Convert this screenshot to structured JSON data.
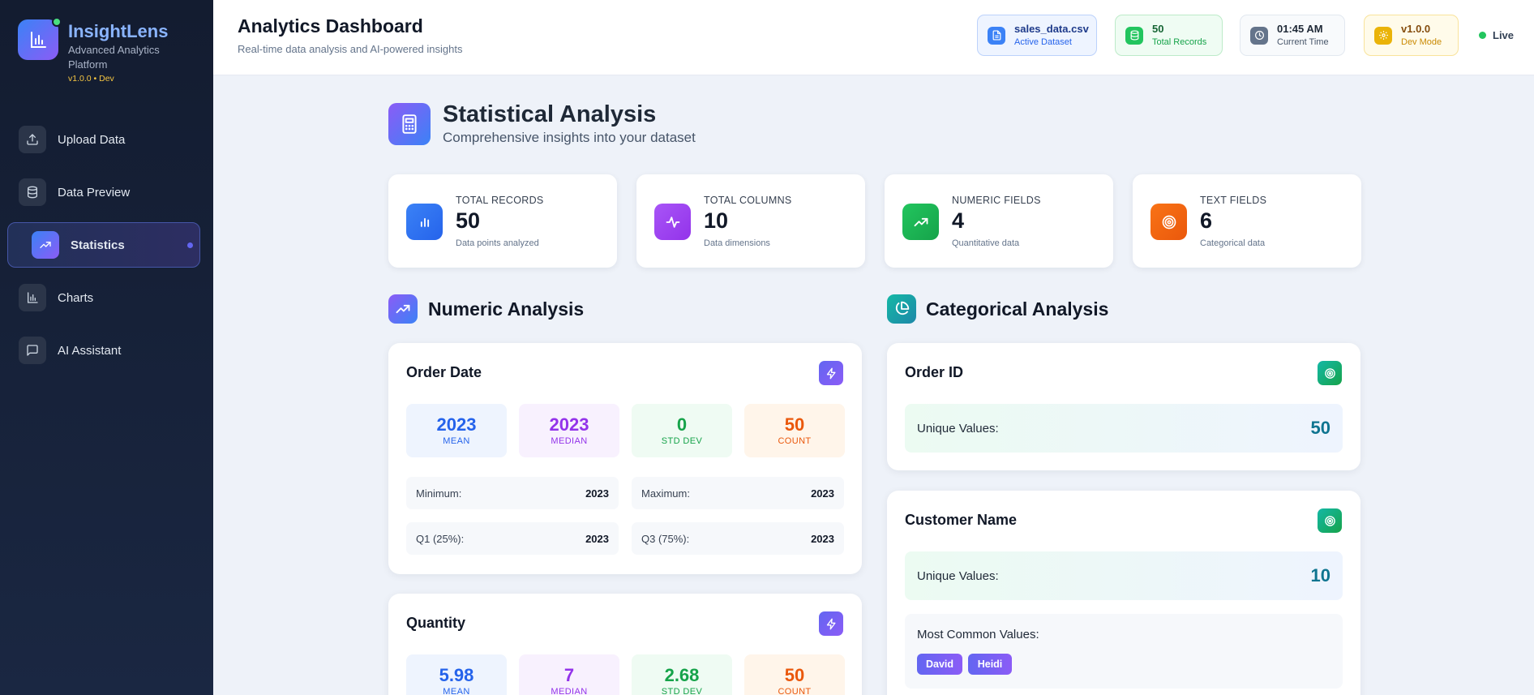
{
  "app": {
    "name": "InsightLens",
    "subtitle": "Advanced Analytics Platform",
    "version_tag": "v1.0.0 • Dev"
  },
  "sidebar": {
    "items": [
      {
        "label": "Upload Data",
        "icon": "upload-icon"
      },
      {
        "label": "Data Preview",
        "icon": "database-icon"
      },
      {
        "label": "Statistics",
        "icon": "trending-up-icon",
        "active": true
      },
      {
        "label": "Charts",
        "icon": "bar-chart-icon"
      },
      {
        "label": "AI Assistant",
        "icon": "message-icon"
      }
    ]
  },
  "header": {
    "title": "Analytics Dashboard",
    "subtitle": "Real-time data analysis and AI-powered insights",
    "dataset": {
      "value": "sales_data.csv",
      "label": "Active Dataset"
    },
    "records": {
      "value": "50",
      "label": "Total Records"
    },
    "time": {
      "value": "01:45 AM",
      "label": "Current Time"
    },
    "mode": {
      "value": "v1.0.0",
      "label": "Dev Mode"
    },
    "live": "Live"
  },
  "main": {
    "title": "Statistical Analysis",
    "subtitle": "Comprehensive insights into your dataset",
    "stats": [
      {
        "label": "TOTAL RECORDS",
        "value": "50",
        "desc": "Data points analyzed",
        "color": "#3b82f6"
      },
      {
        "label": "TOTAL COLUMNS",
        "value": "10",
        "desc": "Data dimensions",
        "color": "#a855f7"
      },
      {
        "label": "NUMERIC FIELDS",
        "value": "4",
        "desc": "Quantitative data",
        "color": "#22c55e"
      },
      {
        "label": "TEXT FIELDS",
        "value": "6",
        "desc": "Categorical data",
        "color": "#f97316"
      }
    ],
    "numeric_title": "Numeric Analysis",
    "categorical_title": "Categorical Analysis",
    "numeric_cards": [
      {
        "name": "Order Date",
        "mean": "2023",
        "median": "2023",
        "std": "0",
        "count": "50",
        "min_label": "Minimum:",
        "min": "2023",
        "max_label": "Maximum:",
        "max": "2023",
        "q1_label": "Q1 (25%):",
        "q1": "2023",
        "q3_label": "Q3 (75%):",
        "q3": "2023"
      },
      {
        "name": "Quantity",
        "mean": "5.98",
        "median": "7",
        "std": "2.68",
        "count": "50"
      }
    ],
    "metric_labels": {
      "mean": "MEAN",
      "median": "MEDIAN",
      "std": "STD DEV",
      "count": "COUNT"
    },
    "categorical_cards": [
      {
        "name": "Order ID",
        "unique_label": "Unique Values:",
        "unique": "50"
      },
      {
        "name": "Customer Name",
        "unique_label": "Unique Values:",
        "unique": "10",
        "common_label": "Most Common Values:",
        "common": [
          "David",
          "Heidi"
        ]
      }
    ]
  }
}
